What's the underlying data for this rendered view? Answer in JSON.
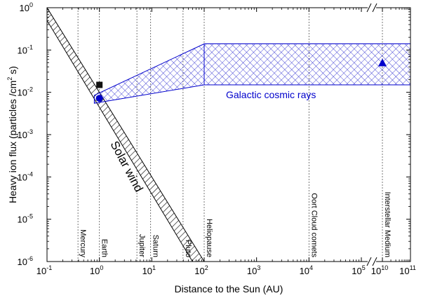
{
  "chart_data": {
    "type": "line",
    "xlabel": "Distance to the Sun (AU)",
    "ylabel_main": "Heavy ion flux (particles /cm",
    "ylabel_exp": "2",
    "ylabel_tail": " s)",
    "x_scale": "log",
    "y_scale": "log",
    "x_axis_break": "between 10^5 and 10^10",
    "xlim": [
      0.1,
      100000000000
    ],
    "ylim": [
      1e-06,
      1
    ],
    "x_ticks": [
      {
        "base": "10",
        "exp": "-1",
        "value": 0.1
      },
      {
        "base": "10",
        "exp": "0",
        "value": 1
      },
      {
        "base": "10",
        "exp": "1",
        "value": 10
      },
      {
        "base": "10",
        "exp": "2",
        "value": 100
      },
      {
        "base": "10",
        "exp": "3",
        "value": 1000
      },
      {
        "base": "10",
        "exp": "4",
        "value": 10000
      },
      {
        "base": "10",
        "exp": "5",
        "value": 100000
      },
      {
        "base": "10",
        "exp": "10",
        "value": 10000000000
      },
      {
        "base": "10",
        "exp": "11",
        "value": 100000000000
      }
    ],
    "y_ticks": [
      {
        "base": "10",
        "exp": "0",
        "value": 1
      },
      {
        "base": "10",
        "exp": "-1",
        "value": 0.1
      },
      {
        "base": "10",
        "exp": "-2",
        "value": 0.01
      },
      {
        "base": "10",
        "exp": "-3",
        "value": 0.001
      },
      {
        "base": "10",
        "exp": "-4",
        "value": 0.0001
      },
      {
        "base": "10",
        "exp": "-5",
        "value": 1e-05
      },
      {
        "base": "10",
        "exp": "-6",
        "value": 1e-06
      }
    ],
    "locations": [
      {
        "label": "Mercury",
        "x": 0.39
      },
      {
        "label": "Earth",
        "x": 1
      },
      {
        "label": "Jupiter",
        "x": 5.2
      },
      {
        "label": "Saturn",
        "x": 9.5
      },
      {
        "label": "Pluto",
        "x": 39.5
      },
      {
        "label": "Heliopause",
        "x": 100
      },
      {
        "label": "Oort Cloud comets",
        "x": 10000
      },
      {
        "label": "Interstellar Medium",
        "x": 10000000000
      }
    ],
    "solar_wind_band": {
      "label": "Solar wind",
      "upper": [
        [
          0.1,
          1.0
        ],
        [
          100,
          1e-06
        ]
      ],
      "lower": [
        [
          0.1,
          0.5
        ],
        [
          60,
          1e-06
        ]
      ]
    },
    "gcr_band": {
      "label": "Galactic cosmic rays",
      "upper": [
        [
          0.8,
          0.0085
        ],
        [
          100,
          0.14
        ],
        [
          100000000000,
          0.14
        ]
      ],
      "lower": [
        [
          0.8,
          0.0055
        ],
        [
          100,
          0.015
        ],
        [
          100000000000,
          0.015
        ]
      ]
    },
    "points": [
      {
        "marker": "square",
        "x": 1,
        "y": 0.015,
        "color": "#111111"
      },
      {
        "marker": "circle",
        "x": 1,
        "y": 0.0072,
        "color": "#0000cc"
      },
      {
        "marker": "triangle",
        "x": 10000000000,
        "y": 0.05,
        "color": "#0000cc"
      }
    ],
    "colors": {
      "gcr": "#0000cc",
      "solar_wind": "#000000",
      "locations": "#555555"
    }
  }
}
